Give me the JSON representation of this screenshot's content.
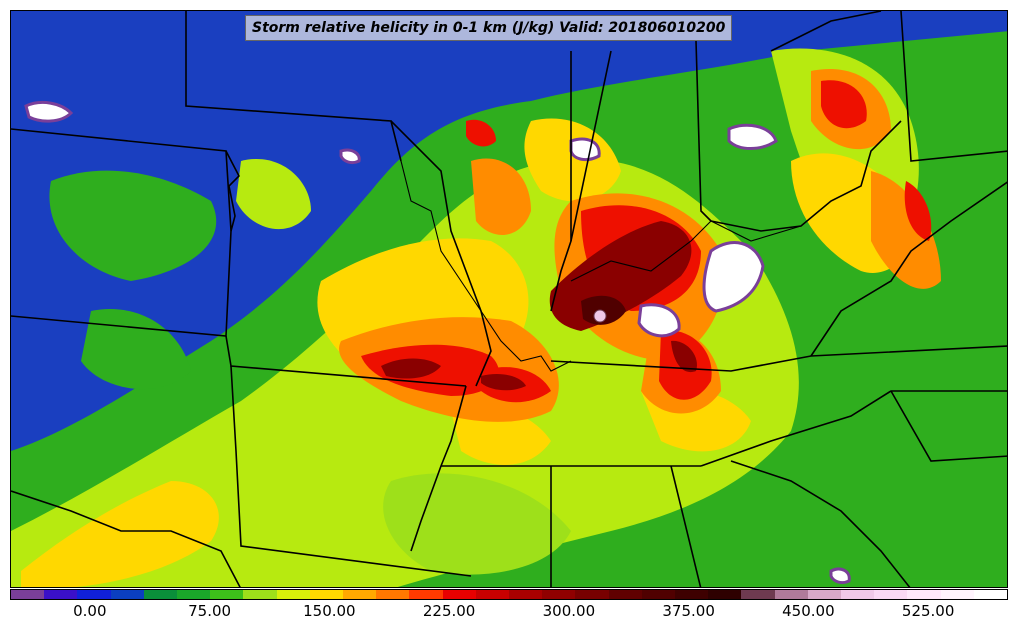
{
  "title": "Storm relative helicity in 0-1 km (J/kg) Valid: 201806010200",
  "colorbar": {
    "colors": [
      "#7a3f99",
      "#3a10c8",
      "#1020d8",
      "#0b3fc0",
      "#0a8f3a",
      "#1aa62a",
      "#3dc01a",
      "#9ee01a",
      "#d8f00a",
      "#ffd800",
      "#ffa800",
      "#ff7800",
      "#ff3a00",
      "#e80000",
      "#c80000",
      "#a80000",
      "#900000",
      "#780000",
      "#600000",
      "#500000",
      "#3e0000",
      "#2e0000",
      "#6e3a50",
      "#b07a9a",
      "#d8a8c8",
      "#f0c8e8",
      "#fad8f4",
      "#ffe8fb",
      "#fff4fd",
      "#ffffff"
    ],
    "tick_labels": [
      "0.00",
      "75.00",
      "150.00",
      "225.00",
      "300.00",
      "375.00",
      "450.00",
      "525.00"
    ],
    "tick_values": [
      0,
      75,
      150,
      225,
      300,
      375,
      450,
      525
    ],
    "range": [
      -50,
      575
    ]
  },
  "palette": {
    "blue": "#1a3fc0",
    "green": "#3dbb1a",
    "lime": "#b7ea10",
    "yellow": "#ffd800",
    "orange": "#ff8c00",
    "red": "#ee1000",
    "darkred": "#8a0000",
    "purple": "#7a3f99",
    "white": "#ffffff"
  }
}
